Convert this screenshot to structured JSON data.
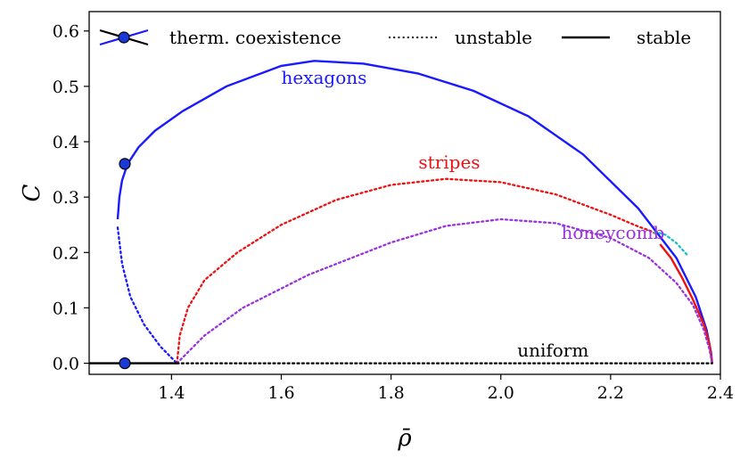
{
  "chart_data": {
    "type": "line",
    "xlabel": "ρ̄",
    "ylabel": "C",
    "xlim": [
      1.25,
      2.4
    ],
    "ylim": [
      -0.02,
      0.635
    ],
    "x_ticks": [
      "1.4",
      "1.6",
      "1.8",
      "2.0",
      "2.2",
      "2.4"
    ],
    "y_ticks": [
      "0.0",
      "0.1",
      "0.2",
      "0.3",
      "0.4",
      "0.5",
      "0.6"
    ],
    "grid": false,
    "legend": {
      "placement": "top",
      "entries": [
        {
          "label": "therm. coexistence",
          "marker": "circle-with-cross"
        },
        {
          "label": "unstable",
          "style": "dotted"
        },
        {
          "label": "stable",
          "style": "solid"
        }
      ]
    },
    "colors": {
      "hexagons": "#1a1aff",
      "stripes": "#ee1111",
      "honeycomb": "#9933dd",
      "uniform": "#000000",
      "cyan": "#22bbcc",
      "marker": "#1a3ad8"
    },
    "series": [
      {
        "name": "hexagons",
        "color": "#1a1aff",
        "stable": [
          [
            1.302,
            0.26
          ],
          [
            1.305,
            0.3
          ],
          [
            1.31,
            0.33
          ],
          [
            1.32,
            0.36
          ],
          [
            1.34,
            0.39
          ],
          [
            1.37,
            0.42
          ],
          [
            1.42,
            0.455
          ],
          [
            1.5,
            0.5
          ],
          [
            1.6,
            0.537
          ],
          [
            1.66,
            0.546
          ],
          [
            1.75,
            0.541
          ],
          [
            1.85,
            0.523
          ],
          [
            1.95,
            0.492
          ],
          [
            2.05,
            0.446
          ],
          [
            2.15,
            0.377
          ],
          [
            2.25,
            0.28
          ],
          [
            2.32,
            0.19
          ],
          [
            2.355,
            0.12
          ],
          [
            2.375,
            0.06
          ],
          [
            2.383,
            0.02
          ],
          [
            2.385,
            0.0
          ]
        ],
        "unstable": [
          [
            1.302,
            0.245
          ],
          [
            1.31,
            0.18
          ],
          [
            1.325,
            0.12
          ],
          [
            1.35,
            0.07
          ],
          [
            1.38,
            0.03
          ],
          [
            1.41,
            0.0
          ]
        ]
      },
      {
        "name": "stripes",
        "color": "#ee1111",
        "stable": [
          [
            2.29,
            0.215
          ],
          [
            2.31,
            0.19
          ],
          [
            2.33,
            0.155
          ],
          [
            2.35,
            0.115
          ],
          [
            2.37,
            0.07
          ],
          [
            2.38,
            0.035
          ],
          [
            2.385,
            0.0
          ]
        ],
        "unstable": [
          [
            1.41,
            0.0
          ],
          [
            1.415,
            0.05
          ],
          [
            1.43,
            0.1
          ],
          [
            1.46,
            0.15
          ],
          [
            1.52,
            0.2
          ],
          [
            1.6,
            0.25
          ],
          [
            1.7,
            0.295
          ],
          [
            1.8,
            0.322
          ],
          [
            1.9,
            0.333
          ],
          [
            2.0,
            0.327
          ],
          [
            2.1,
            0.305
          ],
          [
            2.2,
            0.268
          ],
          [
            2.25,
            0.247
          ],
          [
            2.27,
            0.24
          ],
          [
            2.28,
            0.235
          ]
        ]
      },
      {
        "name": "honeycomb",
        "color": "#9933dd",
        "stable": [],
        "unstable": [
          [
            1.41,
            0.0
          ],
          [
            1.46,
            0.05
          ],
          [
            1.53,
            0.1
          ],
          [
            1.65,
            0.16
          ],
          [
            1.8,
            0.218
          ],
          [
            1.9,
            0.248
          ],
          [
            2.0,
            0.26
          ],
          [
            2.1,
            0.253
          ],
          [
            2.2,
            0.226
          ],
          [
            2.27,
            0.19
          ],
          [
            2.32,
            0.145
          ],
          [
            2.35,
            0.105
          ],
          [
            2.37,
            0.06
          ],
          [
            2.38,
            0.025
          ],
          [
            2.385,
            0.0
          ]
        ]
      },
      {
        "name": "uniform",
        "color": "#000000",
        "stable": [
          [
            1.25,
            0.0
          ],
          [
            1.41,
            0.0
          ]
        ],
        "unstable": [
          [
            1.41,
            0.0
          ],
          [
            2.385,
            0.0
          ]
        ]
      },
      {
        "name": "",
        "color": "#22bbcc",
        "stable": [],
        "unstable": [
          [
            2.28,
            0.236
          ],
          [
            2.29,
            0.235
          ],
          [
            2.3,
            0.232
          ],
          [
            2.32,
            0.217
          ],
          [
            2.34,
            0.195
          ]
        ]
      }
    ],
    "coexistence_points": [
      {
        "x": 1.315,
        "y": 0.36
      },
      {
        "x": 1.315,
        "y": 0.0
      }
    ],
    "annotations": [
      {
        "text": "hexagons",
        "x": 1.6,
        "y": 0.505,
        "color": "#1a1aff"
      },
      {
        "text": "stripes",
        "x": 1.85,
        "y": 0.352,
        "color": "#ee1111"
      },
      {
        "text": "honeycomb",
        "x": 2.11,
        "y": 0.225,
        "color": "#9933dd"
      },
      {
        "text": "uniform",
        "x": 2.03,
        "y": 0.012,
        "color": "#000000"
      }
    ]
  }
}
